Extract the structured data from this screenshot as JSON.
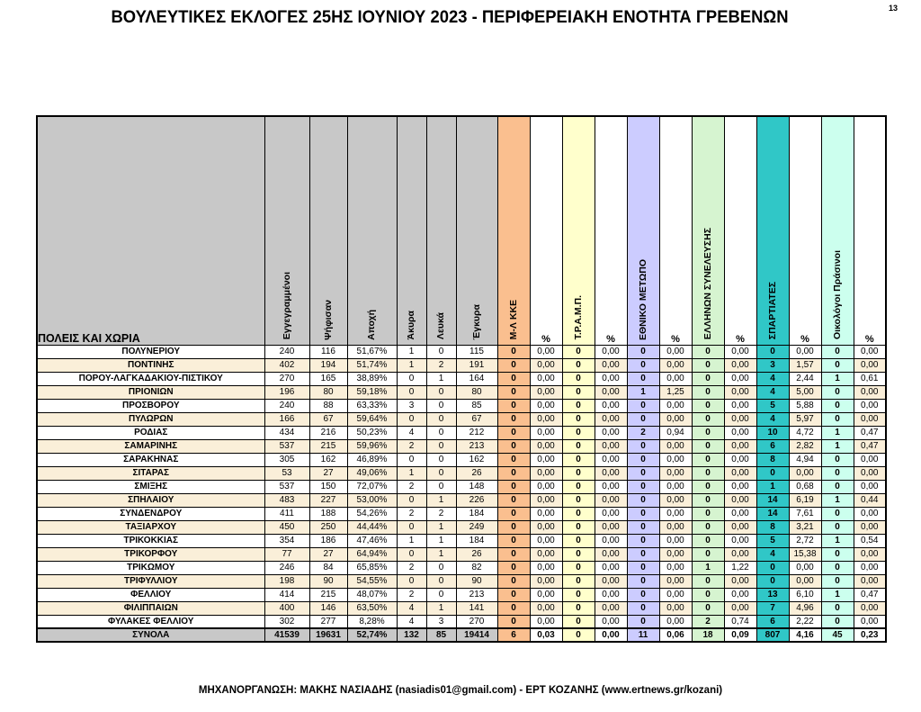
{
  "page": {
    "title": "ΒΟΥΛΕΥΤΙΚΕΣ ΕΚΛΟΓΕΣ 25ΗΣ ΙΟΥΝΙΟΥ 2023 - ΠΕΡΙΦΕΡΕΙΑΚΗ ΕΝΟΤΗΤΑ ΓΡΕΒΕΝΩΝ",
    "page_number": "13",
    "footer": "ΜΗΧΑΝΟΡΓΑΝΩΣΗ: ΜΑΚΗΣ ΝΑΣΙΑΔΗΣ (nasiadis01@gmail.com) - ΕΡΤ ΚΟΖΑΝΗΣ (www.ertnews.gr/kozani)"
  },
  "table": {
    "row_header_label": "ΠΟΛΕΙΣ ΚΑΙ ΧΩΡΙΑ",
    "stat_columns": [
      "Εγγεγραμμένοι",
      "Ψήφισαν",
      "Αποχή",
      "Άκυρα",
      "Λευκά",
      "Έγκυρα"
    ],
    "percent_label": "%",
    "colors": {
      "header_gray": "#C8C8C8",
      "row_stripe": "#FAEFD9",
      "border": "#000000"
    },
    "parties": [
      {
        "name": "Μ-Λ ΚΚΕ",
        "color": "#FABF8F"
      },
      {
        "name": "Τ.Ρ.Α.Μ.Π.",
        "color": "#FFFFCC"
      },
      {
        "name": "ΕΘΝΙΚΟ ΜΕΤΩΠΟ",
        "color": "#CCCCFF"
      },
      {
        "name": "ΕΛΛΗΝΩΝ ΣΥΝΕΛΕΥΣΗΣ",
        "color": "#D6F4D0"
      },
      {
        "name": "ΣΠΑΡΤΙΑΤΕΣ",
        "color": "#30C7C7"
      },
      {
        "name": "Οικολόγοι Πράσινοι",
        "color": "#CCFFEE"
      }
    ],
    "rows": [
      [
        "ΠΟΛΥΝΕΡΙΟΥ",
        "240",
        "116",
        "51,67%",
        "1",
        "0",
        "115",
        "0",
        "0,00",
        "0",
        "0,00",
        "0",
        "0,00",
        "0",
        "0,00",
        "0",
        "0,00",
        "0",
        "0,00"
      ],
      [
        "ΠΟΝΤΙΝΗΣ",
        "402",
        "194",
        "51,74%",
        "1",
        "2",
        "191",
        "0",
        "0,00",
        "0",
        "0,00",
        "0",
        "0,00",
        "0",
        "0,00",
        "3",
        "1,57",
        "0",
        "0,00"
      ],
      [
        "ΠΟΡΟΥ-ΛΑΓΚΑΔΑΚΙΟΥ-ΠΙΣΤΙΚΟΥ",
        "270",
        "165",
        "38,89%",
        "0",
        "1",
        "164",
        "0",
        "0,00",
        "0",
        "0,00",
        "0",
        "0,00",
        "0",
        "0,00",
        "4",
        "2,44",
        "1",
        "0,61"
      ],
      [
        "ΠΡΙΟΝΙΩΝ",
        "196",
        "80",
        "59,18%",
        "0",
        "0",
        "80",
        "0",
        "0,00",
        "0",
        "0,00",
        "1",
        "1,25",
        "0",
        "0,00",
        "4",
        "5,00",
        "0",
        "0,00"
      ],
      [
        "ΠΡΟΣΒΟΡΟΥ",
        "240",
        "88",
        "63,33%",
        "3",
        "0",
        "85",
        "0",
        "0,00",
        "0",
        "0,00",
        "0",
        "0,00",
        "0",
        "0,00",
        "5",
        "5,88",
        "0",
        "0,00"
      ],
      [
        "ΠΥΛΩΡΩΝ",
        "166",
        "67",
        "59,64%",
        "0",
        "0",
        "67",
        "0",
        "0,00",
        "0",
        "0,00",
        "0",
        "0,00",
        "0",
        "0,00",
        "4",
        "5,97",
        "0",
        "0,00"
      ],
      [
        "ΡΟΔΙΑΣ",
        "434",
        "216",
        "50,23%",
        "4",
        "0",
        "212",
        "0",
        "0,00",
        "0",
        "0,00",
        "2",
        "0,94",
        "0",
        "0,00",
        "10",
        "4,72",
        "1",
        "0,47"
      ],
      [
        "ΣΑΜΑΡΙΝΗΣ",
        "537",
        "215",
        "59,96%",
        "2",
        "0",
        "213",
        "0",
        "0,00",
        "0",
        "0,00",
        "0",
        "0,00",
        "0",
        "0,00",
        "6",
        "2,82",
        "1",
        "0,47"
      ],
      [
        "ΣΑΡΑΚΗΝΑΣ",
        "305",
        "162",
        "46,89%",
        "0",
        "0",
        "162",
        "0",
        "0,00",
        "0",
        "0,00",
        "0",
        "0,00",
        "0",
        "0,00",
        "8",
        "4,94",
        "0",
        "0,00"
      ],
      [
        "ΣΙΤΑΡΑΣ",
        "53",
        "27",
        "49,06%",
        "1",
        "0",
        "26",
        "0",
        "0,00",
        "0",
        "0,00",
        "0",
        "0,00",
        "0",
        "0,00",
        "0",
        "0,00",
        "0",
        "0,00"
      ],
      [
        "ΣΜΙΞΗΣ",
        "537",
        "150",
        "72,07%",
        "2",
        "0",
        "148",
        "0",
        "0,00",
        "0",
        "0,00",
        "0",
        "0,00",
        "0",
        "0,00",
        "1",
        "0,68",
        "0",
        "0,00"
      ],
      [
        "ΣΠΗΛΑΙΟΥ",
        "483",
        "227",
        "53,00%",
        "0",
        "1",
        "226",
        "0",
        "0,00",
        "0",
        "0,00",
        "0",
        "0,00",
        "0",
        "0,00",
        "14",
        "6,19",
        "1",
        "0,44"
      ],
      [
        "ΣΥΝΔΕΝΔΡΟΥ",
        "411",
        "188",
        "54,26%",
        "2",
        "2",
        "184",
        "0",
        "0,00",
        "0",
        "0,00",
        "0",
        "0,00",
        "0",
        "0,00",
        "14",
        "7,61",
        "0",
        "0,00"
      ],
      [
        "ΤΑΞΙΑΡΧΟΥ",
        "450",
        "250",
        "44,44%",
        "0",
        "1",
        "249",
        "0",
        "0,00",
        "0",
        "0,00",
        "0",
        "0,00",
        "0",
        "0,00",
        "8",
        "3,21",
        "0",
        "0,00"
      ],
      [
        "ΤΡΙΚΟΚΚΙΑΣ",
        "354",
        "186",
        "47,46%",
        "1",
        "1",
        "184",
        "0",
        "0,00",
        "0",
        "0,00",
        "0",
        "0,00",
        "0",
        "0,00",
        "5",
        "2,72",
        "1",
        "0,54"
      ],
      [
        "ΤΡΙΚΟΡΦΟΥ",
        "77",
        "27",
        "64,94%",
        "0",
        "1",
        "26",
        "0",
        "0,00",
        "0",
        "0,00",
        "0",
        "0,00",
        "0",
        "0,00",
        "4",
        "15,38",
        "0",
        "0,00"
      ],
      [
        "ΤΡΙΚΩΜΟΥ",
        "246",
        "84",
        "65,85%",
        "2",
        "0",
        "82",
        "0",
        "0,00",
        "0",
        "0,00",
        "0",
        "0,00",
        "1",
        "1,22",
        "0",
        "0,00",
        "0",
        "0,00"
      ],
      [
        "ΤΡΙΦΥΛΛΙΟΥ",
        "198",
        "90",
        "54,55%",
        "0",
        "0",
        "90",
        "0",
        "0,00",
        "0",
        "0,00",
        "0",
        "0,00",
        "0",
        "0,00",
        "0",
        "0,00",
        "0",
        "0,00"
      ],
      [
        "ΦΕΛΛΙΟΥ",
        "414",
        "215",
        "48,07%",
        "2",
        "0",
        "213",
        "0",
        "0,00",
        "0",
        "0,00",
        "0",
        "0,00",
        "0",
        "0,00",
        "13",
        "6,10",
        "1",
        "0,47"
      ],
      [
        "ΦΙΛΙΠΠΑΙΩΝ",
        "400",
        "146",
        "63,50%",
        "4",
        "1",
        "141",
        "0",
        "0,00",
        "0",
        "0,00",
        "0",
        "0,00",
        "0",
        "0,00",
        "7",
        "4,96",
        "0",
        "0,00"
      ],
      [
        "ΦΥΛΑΚΕΣ ΦΕΛΛΙΟΥ",
        "302",
        "277",
        "8,28%",
        "4",
        "3",
        "270",
        "0",
        "0,00",
        "0",
        "0,00",
        "0",
        "0,00",
        "2",
        "0,74",
        "6",
        "2,22",
        "0",
        "0,00"
      ]
    ],
    "totals": [
      "ΣΥΝΟΛΑ",
      "41539",
      "19631",
      "52,74%",
      "132",
      "85",
      "19414",
      "6",
      "0,03",
      "0",
      "0,00",
      "11",
      "0,06",
      "18",
      "0,09",
      "807",
      "4,16",
      "45",
      "0,23"
    ]
  }
}
